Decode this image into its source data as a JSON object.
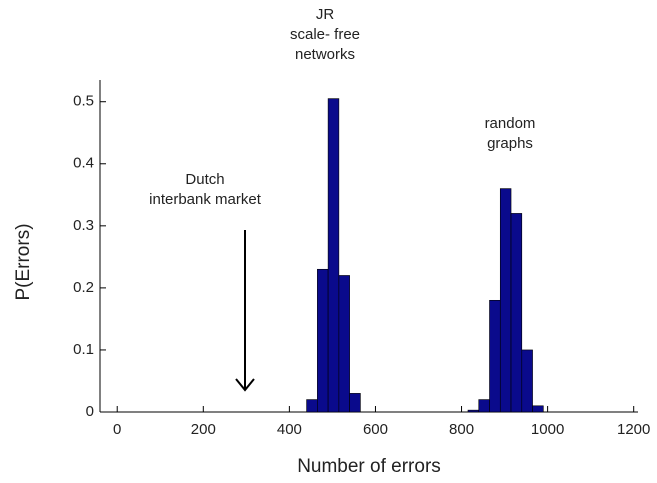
{
  "chart_data": {
    "type": "histogram",
    "x_label": "Number of errors",
    "y_label": "P(Errors)",
    "xlim": [
      -40,
      1210
    ],
    "ylim": [
      0,
      0.535
    ],
    "xticks": [
      0,
      200,
      400,
      600,
      800,
      1000,
      1200
    ],
    "yticks": [
      0,
      0.1,
      0.2,
      0.3,
      0.4,
      0.5
    ],
    "series": [
      {
        "color": "#0a0a8c",
        "bins": [
          440,
          465,
          490,
          515,
          540,
          565
        ],
        "values": [
          0.02,
          0.23,
          0.505,
          0.22,
          0.03
        ]
      },
      {
        "color": "#0a0a8c",
        "bins": [
          815,
          840,
          865,
          890,
          915,
          940,
          965,
          990
        ],
        "values": [
          0.003,
          0.02,
          0.18,
          0.36,
          0.32,
          0.1,
          0.01
        ]
      }
    ],
    "annotations": [
      {
        "lines": [
          "JR",
          "scale- free",
          "networks"
        ]
      },
      {
        "lines": [
          "random",
          "graphs"
        ]
      },
      {
        "lines": [
          "Dutch",
          "interbank market"
        ]
      }
    ]
  }
}
